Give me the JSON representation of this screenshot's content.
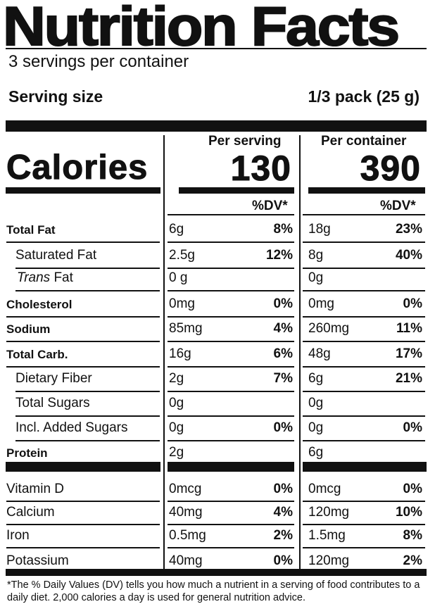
{
  "title": "Nutrition Facts",
  "servings_per_container": "3 servings per container",
  "serving_size_label": "Serving size",
  "serving_size_value": "1/3 pack (25 g)",
  "per_serving_label": "Per serving",
  "per_container_label": "Per container",
  "calories_label": "Calories",
  "calories_serving": "130",
  "calories_container": "390",
  "dv_header": "%DV*",
  "nutrients": [
    {
      "label": "Total Fat",
      "serving": "6g",
      "serving_dv": "8%",
      "container": "18g",
      "container_dv": "23%"
    },
    {
      "label": "Saturated Fat",
      "serving": "2.5g",
      "serving_dv": "12%",
      "container": "8g",
      "container_dv": "40%"
    },
    {
      "label_italic": "Trans",
      "label_rest": " Fat",
      "serving": "0 g",
      "serving_dv": "",
      "container": "0g",
      "container_dv": ""
    },
    {
      "label": "Cholesterol",
      "serving": "0mg",
      "serving_dv": "0%",
      "container": "0mg",
      "container_dv": "0%"
    },
    {
      "label": "Sodium",
      "serving": "85mg",
      "serving_dv": "4%",
      "container": "260mg",
      "container_dv": "11%"
    },
    {
      "label": "Total Carb.",
      "serving": "16g",
      "serving_dv": "6%",
      "container": "48g",
      "container_dv": "17%"
    },
    {
      "label": "Dietary Fiber",
      "serving": "2g",
      "serving_dv": "7%",
      "container": "6g",
      "container_dv": "21%"
    },
    {
      "label": "Total Sugars",
      "serving": "0g",
      "serving_dv": "",
      "container": "0g",
      "container_dv": ""
    },
    {
      "label": "Incl. Added Sugars",
      "serving": "0g",
      "serving_dv": "0%",
      "container": "0g",
      "container_dv": "0%"
    },
    {
      "label": "Protein",
      "serving": "2g",
      "serving_dv": "",
      "container": "6g",
      "container_dv": ""
    }
  ],
  "minerals": [
    {
      "label": "Vitamin D",
      "serving": "0mcg",
      "serving_dv": "0%",
      "container": "0mcg",
      "container_dv": "0%"
    },
    {
      "label": "Calcium",
      "serving": "40mg",
      "serving_dv": "4%",
      "container": "120mg",
      "container_dv": "10%"
    },
    {
      "label": "Iron",
      "serving": "0.5mg",
      "serving_dv": "2%",
      "container": "1.5mg",
      "container_dv": "8%"
    },
    {
      "label": "Potassium",
      "serving": "40mg",
      "serving_dv": "0%",
      "container": "120mg",
      "container_dv": "2%"
    }
  ],
  "footnote": "*The % Daily Values (DV) tells you how much a nutrient in a serving of food contributes to a daily diet. 2,000 calories a day is used for general nutrition advice."
}
